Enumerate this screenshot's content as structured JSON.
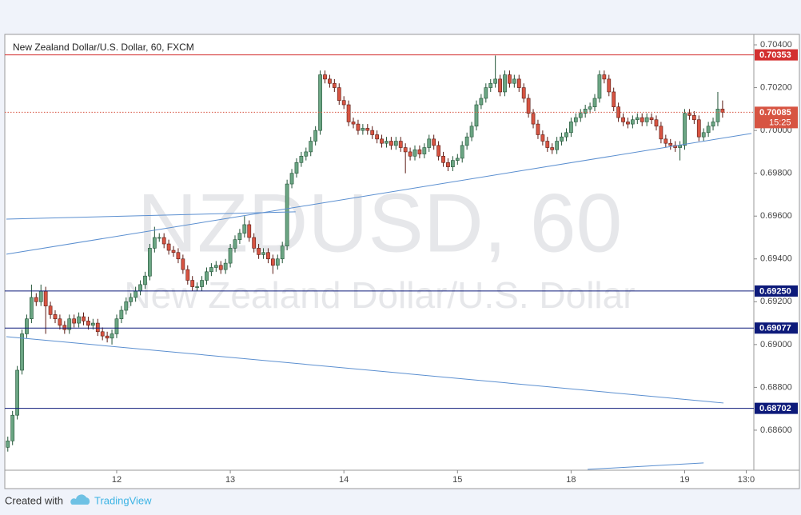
{
  "chart_data": {
    "type": "candlestick",
    "title": "New Zealand Dollar/U.S. Dollar, 60, FXCM",
    "watermark": {
      "symbol": "NZDUSD, 60",
      "name": "New Zealand Dollar/U.S. Dollar"
    },
    "up_color": "#6ba583",
    "down_color": "#d75442",
    "open": [
      0.6852,
      0.6855,
      0.6867,
      0.6888,
      0.6905,
      0.6912,
      0.6922,
      0.692,
      0.6925,
      0.6918,
      0.6914,
      0.6912,
      0.6909,
      0.6907,
      0.6912,
      0.691,
      0.6913,
      0.6911,
      0.6909,
      0.691,
      0.6906,
      0.6904,
      0.6903,
      0.6905,
      0.6912,
      0.6916,
      0.692,
      0.6922,
      0.6925,
      0.6928,
      0.6932,
      0.6945,
      0.695,
      0.695,
      0.6947,
      0.6944,
      0.6943,
      0.694,
      0.6935,
      0.693,
      0.6927,
      0.6927,
      0.693,
      0.6934,
      0.6936,
      0.6937,
      0.6935,
      0.6938,
      0.6945,
      0.6949,
      0.6952,
      0.6956,
      0.695,
      0.6945,
      0.6942,
      0.6943,
      0.694,
      0.6937,
      0.694,
      0.6946,
      0.6975,
      0.698,
      0.6985,
      0.6988,
      0.699,
      0.6995,
      0.7,
      0.7026,
      0.7024,
      0.7022,
      0.702,
      0.7014,
      0.7012,
      0.7004,
      0.7003,
      0.7,
      0.7001,
      0.7,
      0.6998,
      0.6996,
      0.6994,
      0.6995,
      0.6993,
      0.6995,
      0.6992,
      0.699,
      0.6988,
      0.6991,
      0.6989,
      0.6992,
      0.6996,
      0.6993,
      0.6988,
      0.6985,
      0.6983,
      0.6986,
      0.6987,
      0.6993,
      0.6997,
      0.7002,
      0.7012,
      0.7015,
      0.702,
      0.7022,
      0.7024,
      0.7018,
      0.7026,
      0.7022,
      0.7024,
      0.702,
      0.7015,
      0.7008,
      0.7003,
      0.6998,
      0.6995,
      0.6992,
      0.6991,
      0.6995,
      0.6997,
      0.6999,
      0.7004,
      0.7006,
      0.7008,
      0.701,
      0.7011,
      0.7015,
      0.7026,
      0.7024,
      0.7018,
      0.7011,
      0.7006,
      0.7004,
      0.7003,
      0.7005,
      0.7006,
      0.7004,
      0.7006,
      0.7005,
      0.7002,
      0.6996,
      0.6994,
      0.6993,
      0.6992,
      0.6993,
      0.7008,
      0.7007,
      0.7005,
      0.6997,
      0.6999,
      0.7002,
      0.7004,
      0.701
    ],
    "high": [
      0.6857,
      0.6869,
      0.689,
      0.6907,
      0.6914,
      0.6928,
      0.6924,
      0.6928,
      0.6927,
      0.692,
      0.6916,
      0.6914,
      0.6911,
      0.6914,
      0.6914,
      0.6915,
      0.6915,
      0.6913,
      0.6912,
      0.6912,
      0.6908,
      0.6906,
      0.6907,
      0.6914,
      0.6918,
      0.6922,
      0.6924,
      0.6927,
      0.693,
      0.6934,
      0.6947,
      0.6955,
      0.6952,
      0.6952,
      0.6949,
      0.6946,
      0.6945,
      0.6942,
      0.6937,
      0.6932,
      0.6929,
      0.6932,
      0.6936,
      0.6938,
      0.6939,
      0.6939,
      0.694,
      0.6947,
      0.6951,
      0.6954,
      0.696,
      0.6958,
      0.6952,
      0.6947,
      0.6945,
      0.6945,
      0.6942,
      0.6942,
      0.6948,
      0.6977,
      0.6982,
      0.6987,
      0.699,
      0.6992,
      0.6997,
      0.7002,
      0.7028,
      0.7028,
      0.7026,
      0.7024,
      0.7022,
      0.7016,
      0.7014,
      0.7006,
      0.7005,
      0.7003,
      0.7003,
      0.7002,
      0.7,
      0.6998,
      0.6997,
      0.6997,
      0.6997,
      0.6997,
      0.6994,
      0.6992,
      0.6993,
      0.6993,
      0.6994,
      0.6998,
      0.6998,
      0.6995,
      0.699,
      0.6987,
      0.6988,
      0.6989,
      0.6995,
      0.6999,
      0.7004,
      0.7014,
      0.7017,
      0.7022,
      0.7024,
      0.7035,
      0.7026,
      0.7028,
      0.7028,
      0.7026,
      0.7026,
      0.7022,
      0.7017,
      0.701,
      0.7005,
      0.7,
      0.6997,
      0.6994,
      0.6997,
      0.6999,
      0.7001,
      0.7006,
      0.7008,
      0.701,
      0.7012,
      0.7013,
      0.7017,
      0.7028,
      0.7028,
      0.7026,
      0.702,
      0.7013,
      0.7008,
      0.7006,
      0.7007,
      0.7008,
      0.7008,
      0.7008,
      0.7008,
      0.7007,
      0.7004,
      0.6998,
      0.6996,
      0.6995,
      0.6995,
      0.701,
      0.701,
      0.7009,
      0.7007,
      0.7001,
      0.7004,
      0.7006,
      0.7018,
      0.7014
    ],
    "low": [
      0.685,
      0.6853,
      0.6865,
      0.6886,
      0.6903,
      0.691,
      0.6918,
      0.6918,
      0.6905,
      0.6912,
      0.691,
      0.6907,
      0.6905,
      0.6905,
      0.6908,
      0.6908,
      0.6909,
      0.6907,
      0.6907,
      0.6904,
      0.6902,
      0.6901,
      0.69,
      0.6903,
      0.691,
      0.6914,
      0.6918,
      0.692,
      0.6923,
      0.6926,
      0.693,
      0.6943,
      0.6948,
      0.6945,
      0.6942,
      0.6941,
      0.6938,
      0.6933,
      0.6928,
      0.6925,
      0.6925,
      0.6925,
      0.6928,
      0.6932,
      0.6934,
      0.6933,
      0.6933,
      0.6936,
      0.6943,
      0.6947,
      0.695,
      0.6948,
      0.6943,
      0.694,
      0.694,
      0.6938,
      0.6933,
      0.6935,
      0.6938,
      0.6944,
      0.6973,
      0.6978,
      0.6983,
      0.6986,
      0.6988,
      0.6993,
      0.6998,
      0.7022,
      0.702,
      0.7018,
      0.7012,
      0.701,
      0.7002,
      0.7001,
      0.6998,
      0.6998,
      0.6998,
      0.6996,
      0.6994,
      0.6992,
      0.6992,
      0.6991,
      0.6991,
      0.699,
      0.698,
      0.6986,
      0.6986,
      0.6987,
      0.6987,
      0.699,
      0.6991,
      0.6986,
      0.6983,
      0.6981,
      0.6981,
      0.6984,
      0.6985,
      0.6991,
      0.6995,
      0.7,
      0.701,
      0.7013,
      0.7018,
      0.702,
      0.7016,
      0.7016,
      0.702,
      0.702,
      0.7018,
      0.7013,
      0.7006,
      0.7001,
      0.6996,
      0.6993,
      0.699,
      0.6989,
      0.6989,
      0.6993,
      0.6995,
      0.6997,
      0.7002,
      0.7004,
      0.7006,
      0.7008,
      0.7009,
      0.7013,
      0.7022,
      0.7016,
      0.7009,
      0.7004,
      0.7002,
      0.7001,
      0.7001,
      0.7003,
      0.7002,
      0.7002,
      0.7003,
      0.7,
      0.6994,
      0.6992,
      0.6991,
      0.699,
      0.6986,
      0.6991,
      0.7005,
      0.7003,
      0.6995,
      0.6995,
      0.6997,
      0.7,
      0.7002,
      0.7006
    ],
    "close": [
      0.6855,
      0.6867,
      0.6888,
      0.6905,
      0.6912,
      0.6922,
      0.692,
      0.6925,
      0.6918,
      0.6914,
      0.6912,
      0.6909,
      0.6907,
      0.6912,
      0.691,
      0.6913,
      0.6911,
      0.6909,
      0.691,
      0.6906,
      0.6904,
      0.6903,
      0.6905,
      0.6912,
      0.6916,
      0.692,
      0.6922,
      0.6925,
      0.6928,
      0.6932,
      0.6945,
      0.695,
      0.695,
      0.6947,
      0.6944,
      0.6943,
      0.694,
      0.6935,
      0.693,
      0.6927,
      0.6927,
      0.693,
      0.6934,
      0.6936,
      0.6937,
      0.6935,
      0.6938,
      0.6945,
      0.6949,
      0.6952,
      0.6956,
      0.695,
      0.6945,
      0.6942,
      0.6943,
      0.694,
      0.6937,
      0.694,
      0.6946,
      0.6975,
      0.698,
      0.6985,
      0.6988,
      0.699,
      0.6995,
      0.7,
      0.7026,
      0.7024,
      0.7022,
      0.702,
      0.7014,
      0.7012,
      0.7004,
      0.7003,
      0.7,
      0.7001,
      0.7,
      0.6998,
      0.6996,
      0.6994,
      0.6995,
      0.6993,
      0.6995,
      0.6992,
      0.699,
      0.6988,
      0.6991,
      0.6989,
      0.6992,
      0.6996,
      0.6993,
      0.6988,
      0.6985,
      0.6983,
      0.6986,
      0.6987,
      0.6993,
      0.6997,
      0.7002,
      0.7012,
      0.7015,
      0.702,
      0.7022,
      0.7024,
      0.7018,
      0.7026,
      0.7022,
      0.7024,
      0.702,
      0.7015,
      0.7008,
      0.7003,
      0.6998,
      0.6995,
      0.6992,
      0.6991,
      0.6995,
      0.6997,
      0.6999,
      0.7004,
      0.7006,
      0.7008,
      0.701,
      0.7011,
      0.7015,
      0.7026,
      0.7024,
      0.7018,
      0.7011,
      0.7006,
      0.7004,
      0.7003,
      0.7005,
      0.7006,
      0.7004,
      0.7006,
      0.7005,
      0.7002,
      0.6996,
      0.6994,
      0.6993,
      0.6992,
      0.6993,
      0.7008,
      0.7007,
      0.7005,
      0.6997,
      0.6999,
      0.7002,
      0.7004,
      0.701,
      0.70085
    ],
    "xlim": [
      -0.3,
      157.1
    ],
    "xticks": [
      {
        "value": 23,
        "label": "12"
      },
      {
        "value": 47,
        "label": "13"
      },
      {
        "value": 71,
        "label": "14"
      },
      {
        "value": 95,
        "label": "15"
      },
      {
        "value": 119,
        "label": "18"
      },
      {
        "value": 143,
        "label": "19"
      },
      {
        "value": 156,
        "label": "13:0"
      }
    ],
    "ylim": [
      0.68413,
      0.70445
    ],
    "yticks": [
      {
        "value": 0.686,
        "label": "0.68600"
      },
      {
        "value": 0.688,
        "label": "0.68800"
      },
      {
        "value": 0.69,
        "label": "0.69000"
      },
      {
        "value": 0.692,
        "label": "0.69200"
      },
      {
        "value": 0.694,
        "label": "0.69400"
      },
      {
        "value": 0.696,
        "label": "0.69600"
      },
      {
        "value": 0.698,
        "label": "0.69800"
      },
      {
        "value": 0.7,
        "label": "0.70000"
      },
      {
        "value": 0.702,
        "label": "0.70200"
      },
      {
        "value": 0.704,
        "label": "0.70400"
      }
    ],
    "levels": [
      {
        "value": 0.70353,
        "label": "0.70353",
        "color": "#d32f2f"
      },
      {
        "value": 0.6925,
        "label": "0.69250",
        "color": "#0d1a7a"
      },
      {
        "value": 0.69077,
        "label": "0.69077",
        "color": "#0d1a7a"
      },
      {
        "value": 0.68702,
        "label": "0.68702",
        "color": "#0d1a7a"
      }
    ],
    "last_price": {
      "value": 0.70085,
      "label": "0.70085",
      "countdown": "15:25",
      "color": "#d75442"
    },
    "trend_lines": [
      {
        "x": [
          -0.3,
          157.1
        ],
        "y": [
          0.69422,
          0.69986
        ],
        "color": "#5b8fd0"
      },
      {
        "x": [
          -0.3,
          60.8
        ],
        "y": [
          0.69586,
          0.6962
        ],
        "color": "#5b8fd0"
      },
      {
        "x": [
          -0.3,
          151.2
        ],
        "y": [
          0.69037,
          0.68727
        ],
        "color": "#5b8fd0"
      },
      {
        "x": [
          122.5,
          147
        ],
        "y": [
          0.68417,
          0.68447
        ],
        "color": "#5b8fd0"
      }
    ]
  },
  "footer": {
    "created_with": "Created with",
    "brand": "TradingView"
  }
}
